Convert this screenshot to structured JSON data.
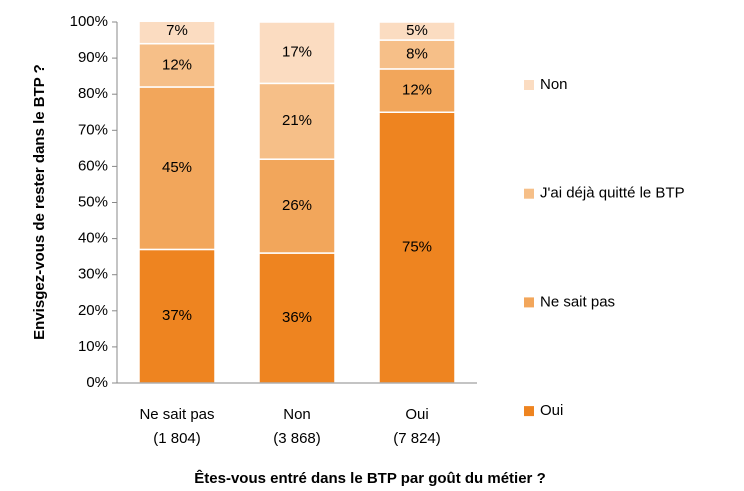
{
  "chart_data": {
    "type": "stacked_bar",
    "x_label": "Êtes-vous entré dans le BTP par goût du métier ?",
    "y_label": "Envisgez-vous de rester dans le BTP ?",
    "categories": [
      [
        "Ne sait pas",
        "(1 804)"
      ],
      [
        "Non",
        "(3 868)"
      ],
      [
        "Oui",
        "(7 824)"
      ]
    ],
    "series": [
      {
        "name": "Oui",
        "color": "#ee8420",
        "values": [
          37,
          36,
          75
        ],
        "value_labels": [
          "37%",
          "36%",
          "75%"
        ]
      },
      {
        "name": "Ne sait pas",
        "color": "#f2a65b",
        "values": [
          45,
          26,
          12
        ],
        "value_labels": [
          "45%",
          "26%",
          "12%"
        ]
      },
      {
        "name": "J'ai déjà quitté le BTP",
        "color": "#f6bf88",
        "values": [
          12,
          21,
          8
        ],
        "value_labels": [
          "12%",
          "21%",
          "8%"
        ]
      },
      {
        "name": "Non",
        "color": "#fbdcc1",
        "values": [
          7,
          17,
          5
        ],
        "value_labels": [
          "7%",
          "17%",
          "5%"
        ]
      }
    ],
    "ylim": [
      0,
      100
    ],
    "yticks": [
      {
        "value": 0,
        "label": "0%"
      },
      {
        "value": 10,
        "label": "10%"
      },
      {
        "value": 20,
        "label": "20%"
      },
      {
        "value": 30,
        "label": "30%"
      },
      {
        "value": 40,
        "label": "40%"
      },
      {
        "value": 50,
        "label": "50%"
      },
      {
        "value": 60,
        "label": "60%"
      },
      {
        "value": 70,
        "label": "70%"
      },
      {
        "value": 80,
        "label": "80%"
      },
      {
        "value": 90,
        "label": "90%"
      },
      {
        "value": 100,
        "label": "100%"
      }
    ],
    "legend": "right"
  }
}
